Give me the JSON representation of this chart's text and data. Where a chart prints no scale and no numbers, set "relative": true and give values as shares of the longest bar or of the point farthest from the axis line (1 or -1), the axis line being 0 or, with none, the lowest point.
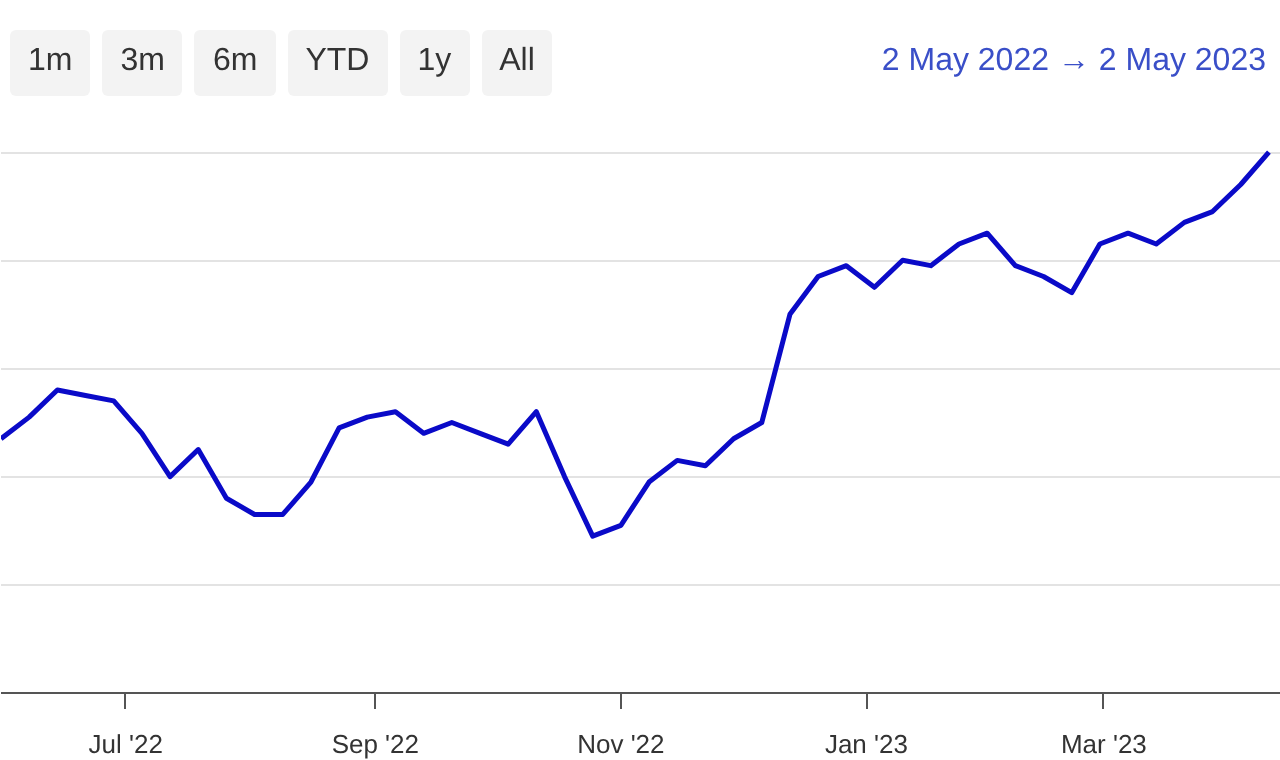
{
  "chart_data": {
    "type": "line",
    "relative": true,
    "subtitle": "2 May 2022 → 2 May 2023",
    "annotations": [
      "1m",
      "3m",
      "6m",
      "YTD",
      "1y",
      "All"
    ],
    "x": [
      "2022-05-31",
      "2022-06-07",
      "2022-06-14",
      "2022-06-21",
      "2022-06-28",
      "2022-07-05",
      "2022-07-12",
      "2022-07-19",
      "2022-07-26",
      "2022-08-02",
      "2022-08-09",
      "2022-08-16",
      "2022-08-23",
      "2022-08-30",
      "2022-09-06",
      "2022-09-13",
      "2022-09-20",
      "2022-09-27",
      "2022-10-04",
      "2022-10-11",
      "2022-10-18",
      "2022-10-25",
      "2022-11-01",
      "2022-11-08",
      "2022-11-15",
      "2022-11-22",
      "2022-11-29",
      "2022-12-06",
      "2022-12-13",
      "2022-12-20",
      "2022-12-27",
      "2023-01-03",
      "2023-01-10",
      "2023-01-17",
      "2023-01-24",
      "2023-01-31",
      "2023-02-07",
      "2023-02-14",
      "2023-02-21",
      "2023-02-28",
      "2023-03-07",
      "2023-03-14",
      "2023-03-21",
      "2023-03-28",
      "2023-04-04",
      "2023-04-11"
    ],
    "series": [
      {
        "color": "#0a0ac8",
        "values": [
          0.47,
          0.51,
          0.56,
          0.55,
          0.54,
          0.48,
          0.4,
          0.45,
          0.36,
          0.33,
          0.33,
          0.39,
          0.49,
          0.51,
          0.52,
          0.48,
          0.5,
          0.48,
          0.46,
          0.52,
          0.4,
          0.29,
          0.31,
          0.39,
          0.43,
          0.42,
          0.47,
          0.5,
          0.7,
          0.77,
          0.79,
          0.75,
          0.8,
          0.79,
          0.83,
          0.85,
          0.79,
          0.77,
          0.74,
          0.83,
          0.85,
          0.83,
          0.87,
          0.89,
          0.94,
          1.0
        ]
      }
    ],
    "xlim": [
      "2022-05-31",
      "2023-04-14"
    ],
    "xticks": [
      {
        "value": "2022-07-01",
        "label": "Jul '22"
      },
      {
        "value": "2022-09-01",
        "label": "Sep '22"
      },
      {
        "value": "2022-11-01",
        "label": "Nov '22"
      },
      {
        "value": "2023-01-01",
        "label": "Jan '23"
      },
      {
        "value": "2023-03-01",
        "label": "Mar '23"
      }
    ],
    "grid": "y",
    "marker": "none",
    "line_style": "solid"
  }
}
